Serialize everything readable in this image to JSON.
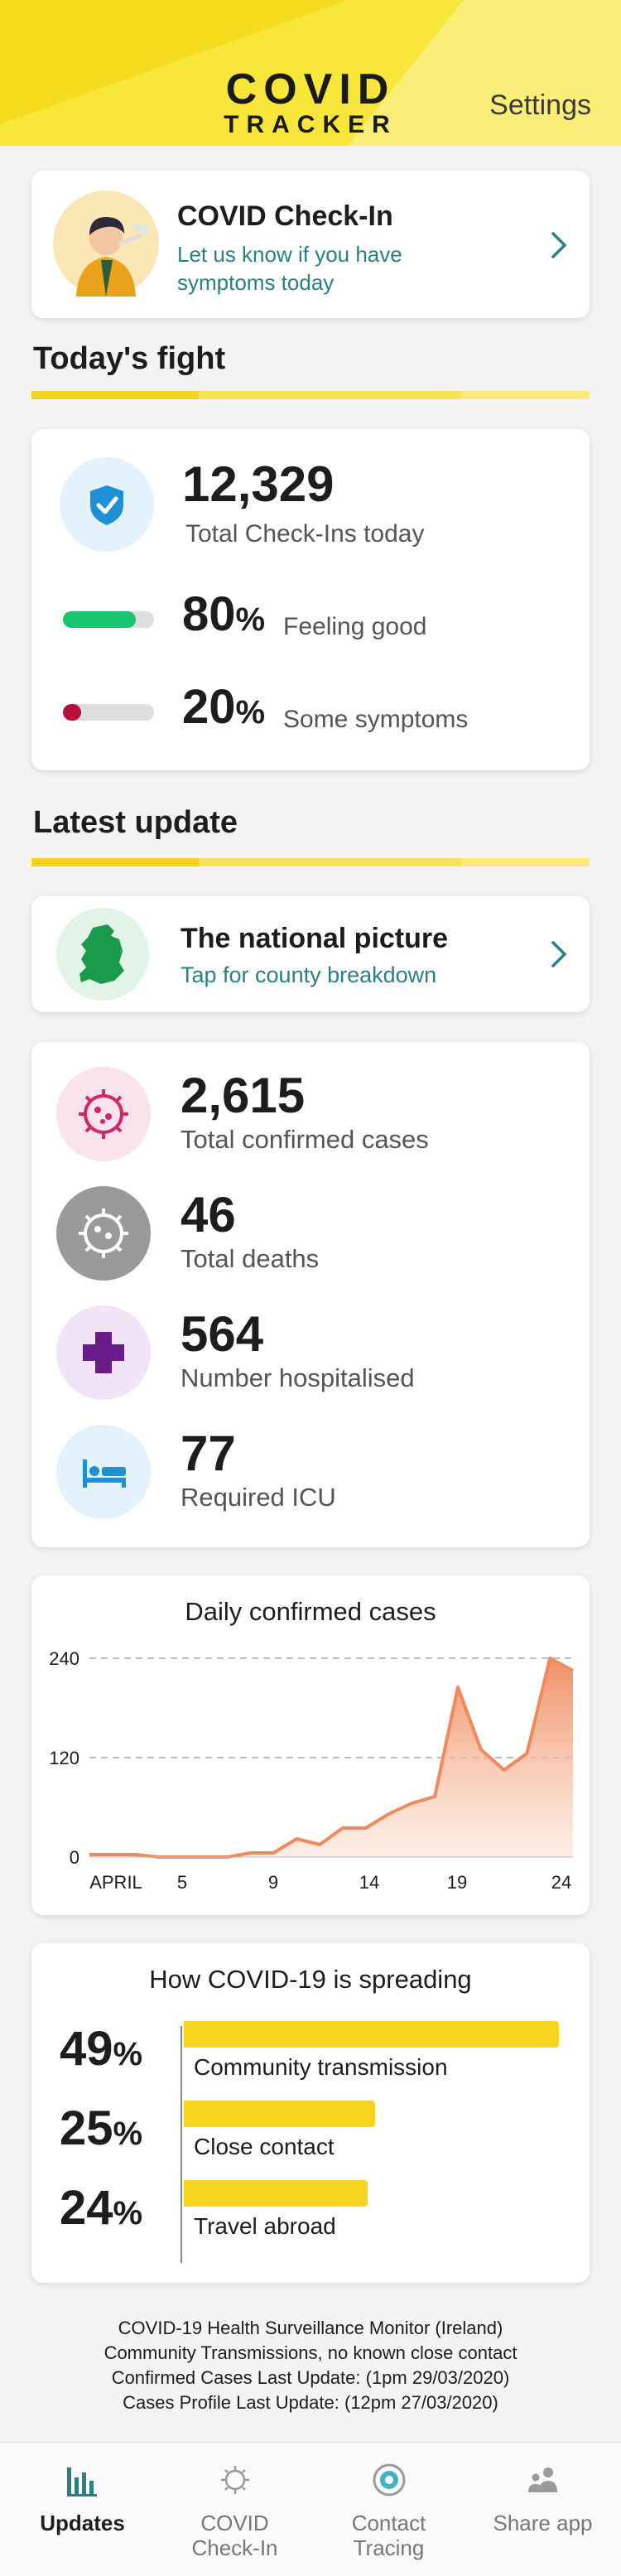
{
  "header": {
    "logo_line1": "COVID",
    "logo_line2": "TRACKER",
    "settings_label": "Settings",
    "background_color": "#f9e63a"
  },
  "checkin": {
    "title": "COVID Check-In",
    "subtitle": "Let us know if you have symptoms today",
    "icon": "person-thermometer-illustration"
  },
  "todays_fight": {
    "section_title": "Today's fight",
    "total_checkins": "12,329",
    "total_checkins_label": "Total Check-Ins today",
    "feeling_good_pct": "80",
    "feeling_good_label": "Feeling good",
    "feeling_good_color": "#18c46e",
    "symptoms_pct": "20",
    "symptoms_label": "Some symptoms",
    "symptoms_color": "#b4103b",
    "percent_sign": "%"
  },
  "latest_update": {
    "section_title": "Latest update",
    "national_title": "The national picture",
    "national_sub": "Tap for county breakdown"
  },
  "stats": [
    {
      "value": "2,615",
      "label": "Total confirmed cases",
      "icon": "virus-icon",
      "color": "#d1286b",
      "bg": "#fbe3ec"
    },
    {
      "value": "46",
      "label": "Total deaths",
      "icon": "virus-grey-icon",
      "color": "#ffffff",
      "bg": "#9a9a9a"
    },
    {
      "value": "564",
      "label": "Number hospitalised",
      "icon": "medical-cross-icon",
      "color": "#6a1b8a",
      "bg": "#f1e4f6"
    },
    {
      "value": "77",
      "label": "Required ICU",
      "icon": "bed-icon",
      "color": "#1f8fd6",
      "bg": "#e3f2fb"
    }
  ],
  "chart_data": {
    "type": "area",
    "title": "Daily confirmed cases",
    "x_tick_labels": [
      "APRIL",
      "5",
      "9",
      "14",
      "19",
      "24"
    ],
    "y_tick_labels": [
      "240",
      "120",
      "0"
    ],
    "ylim": [
      0,
      240
    ],
    "y_ticks": [
      0,
      120,
      240
    ],
    "grid": "dashed horizontal",
    "color": "#f08a5d",
    "values": [
      3,
      3,
      3,
      0,
      0,
      0,
      0,
      5,
      5,
      22,
      15,
      35,
      35,
      52,
      65,
      73,
      205,
      130,
      105,
      125,
      240,
      225
    ]
  },
  "spreading": {
    "title": "How COVID-19 is spreading",
    "percent_sign": "%",
    "items": [
      {
        "pct": "49",
        "value": 49,
        "label": "Community transmission"
      },
      {
        "pct": "25",
        "value": 25,
        "label": "Close contact"
      },
      {
        "pct": "24",
        "value": 24,
        "label": "Travel abroad"
      }
    ],
    "bar_color": "#f7d51e"
  },
  "footer": {
    "line1": "COVID-19 Health Surveillance Monitor (Ireland)",
    "line2": "Community Transmissions, no known close contact",
    "line3": "Confirmed Cases Last Update: (1pm 29/03/2020)",
    "line4": "Cases Profile Last Update: (12pm 27/03/2020)"
  },
  "nav": {
    "updates": "Updates",
    "checkin_line1": "COVID",
    "checkin_line2": "Check-In",
    "tracing_line1": "Contact",
    "tracing_line2": "Tracing",
    "share": "Share app",
    "active": "Updates"
  }
}
